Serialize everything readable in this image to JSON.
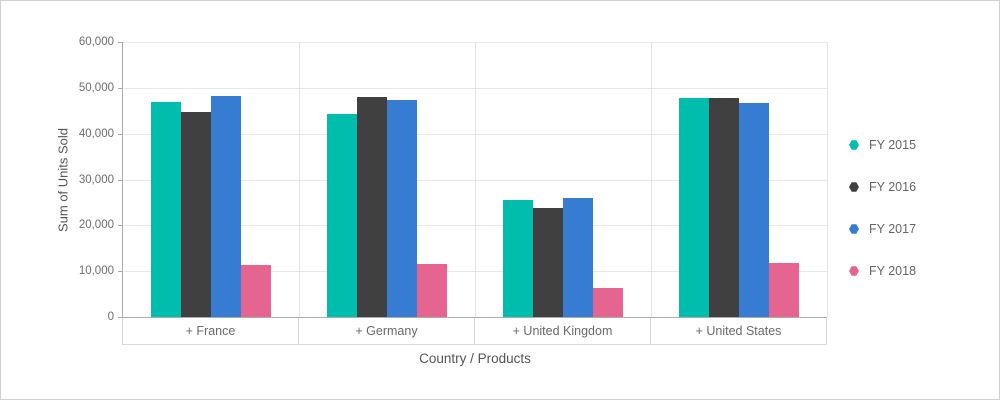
{
  "chart_data": {
    "type": "bar",
    "title": "",
    "xlabel": "Country / Products",
    "ylabel": "Sum of Units Sold",
    "categories": [
      "+ France",
      "+ Germany",
      "+ United Kingdom",
      "+ United States"
    ],
    "series": [
      {
        "name": "FY 2015",
        "color": "#00bdae",
        "values": [
          47000,
          44300,
          25500,
          47900
        ]
      },
      {
        "name": "FY 2016",
        "color": "#404041",
        "values": [
          44700,
          48100,
          23900,
          47900
        ]
      },
      {
        "name": "FY 2017",
        "color": "#357cd2",
        "values": [
          48300,
          47300,
          25900,
          46700
        ]
      },
      {
        "name": "FY 2018",
        "color": "#e56590",
        "values": [
          11400,
          11500,
          6300,
          11800
        ]
      }
    ],
    "ylim": [
      0,
      60000
    ],
    "ytick_values": [
      0,
      10000,
      20000,
      30000,
      40000,
      50000,
      60000
    ],
    "ytick_labels": [
      "0",
      "10,000",
      "20,000",
      "30,000",
      "40,000",
      "50,000",
      "60,000"
    ],
    "grid": "horizontal gridlines on, vertical separators between category groups",
    "legend_position": "right",
    "category_axis_note": "expandable pivot categories prefixed with +"
  },
  "colors": {
    "background": "#ffffff",
    "frame_border": "#d2d2d2",
    "gridline": "#e8e8e8",
    "separator": "#e4e4e4",
    "axis_line": "#ababab",
    "band_border": "#d9d9d9",
    "tick_text": "#6e6e6e",
    "category_text": "#6a6a6a",
    "axis_title_text": "#565656",
    "legend_text": "#666666"
  }
}
